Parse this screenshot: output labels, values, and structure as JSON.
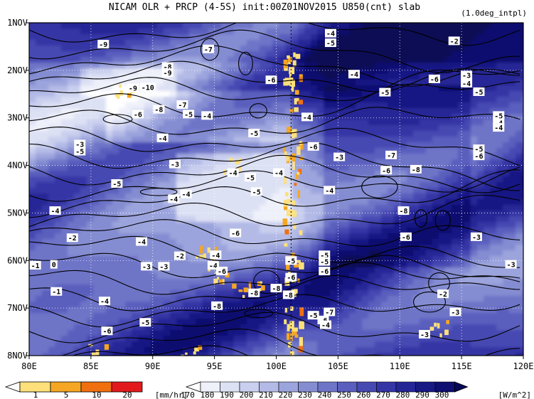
{
  "chart_data": {
    "type": "heatmap",
    "title": "NICAM  OLR + PRCP (4-5S) init:00Z01NOV2015 U850(cnt) slab",
    "subtitle": "(1.0deg_intpl)",
    "x_axis": {
      "range": [
        80,
        120
      ],
      "tick_values": [
        80,
        85,
        90,
        95,
        100,
        105,
        110,
        115,
        120
      ],
      "tick_labels": [
        "80E",
        "85E",
        "90E",
        "95E",
        "100E",
        "105E",
        "110E",
        "115E",
        "120E"
      ]
    },
    "y_axis": {
      "range_days": [
        1,
        8
      ],
      "reversed": true,
      "tick_values": [
        1,
        2,
        3,
        4,
        5,
        6,
        7,
        8
      ],
      "tick_labels": [
        "1NOV",
        "2NOV",
        "3NOV",
        "4NOV",
        "5NOV",
        "6NOV",
        "7NOV",
        "8NOV"
      ]
    },
    "grid": "dotted",
    "precip_colorbar": {
      "unit": "[mm/hr]",
      "levels": [
        1,
        5,
        10,
        20
      ],
      "colors": [
        "#ffffff",
        "#fde07a",
        "#f5a623",
        "#f07010",
        "#e31a1c"
      ]
    },
    "olr_colorbar": {
      "unit": "[W/m^2]",
      "levels": [
        170,
        180,
        190,
        200,
        210,
        220,
        230,
        240,
        250,
        260,
        270,
        280,
        290,
        300
      ],
      "colors": [
        "#ffffff",
        "#eef0fa",
        "#dde1f4",
        "#c9cfee",
        "#b3bae6",
        "#9ca4dd",
        "#858dd2",
        "#6e75c7",
        "#5a5fbd",
        "#4749b2",
        "#3535a5",
        "#252696",
        "#171984",
        "#0e0f70",
        "#070855"
      ]
    },
    "precip_contour_x": 101.2,
    "contour_labels": [
      {
        "x": 86,
        "y": 1.45,
        "text": "-9"
      },
      {
        "x": 94.5,
        "y": 1.55,
        "text": "-7"
      },
      {
        "x": 91.2,
        "y": 1.92,
        "text": "-8"
      },
      {
        "x": 91.2,
        "y": 2.05,
        "text": "-9"
      },
      {
        "x": 89.6,
        "y": 2.35,
        "text": "-10"
      },
      {
        "x": 88.4,
        "y": 2.37,
        "text": "-9"
      },
      {
        "x": 99.6,
        "y": 2.2,
        "text": "-6"
      },
      {
        "x": 104.4,
        "y": 1.22,
        "text": "-4"
      },
      {
        "x": 104.4,
        "y": 1.42,
        "text": "-5"
      },
      {
        "x": 114.4,
        "y": 1.38,
        "text": "-2"
      },
      {
        "x": 106.3,
        "y": 2.08,
        "text": "-4"
      },
      {
        "x": 108.8,
        "y": 2.46,
        "text": "-5"
      },
      {
        "x": 112.8,
        "y": 2.18,
        "text": "-6"
      },
      {
        "x": 115.4,
        "y": 2.1,
        "text": "-3"
      },
      {
        "x": 115.4,
        "y": 2.27,
        "text": "-4"
      },
      {
        "x": 116.4,
        "y": 2.45,
        "text": "-5"
      },
      {
        "x": 92.4,
        "y": 2.72,
        "text": "-7"
      },
      {
        "x": 90.5,
        "y": 2.82,
        "text": "-8"
      },
      {
        "x": 88.8,
        "y": 2.92,
        "text": "-6"
      },
      {
        "x": 92.9,
        "y": 2.92,
        "text": "-5"
      },
      {
        "x": 94.4,
        "y": 2.95,
        "text": "-4"
      },
      {
        "x": 98.2,
        "y": 3.32,
        "text": "-5"
      },
      {
        "x": 102.5,
        "y": 2.98,
        "text": "-4"
      },
      {
        "x": 118.0,
        "y": 2.95,
        "text": "-5"
      },
      {
        "x": 118.0,
        "y": 3.1,
        "text": "-4"
      },
      {
        "x": 118.0,
        "y": 3.2,
        "text": "-4"
      },
      {
        "x": 90.8,
        "y": 3.42,
        "text": "-4"
      },
      {
        "x": 84.1,
        "y": 3.55,
        "text": "-3"
      },
      {
        "x": 84.1,
        "y": 3.7,
        "text": "-5"
      },
      {
        "x": 103.0,
        "y": 3.6,
        "text": "-6"
      },
      {
        "x": 105.1,
        "y": 3.82,
        "text": "-3"
      },
      {
        "x": 109.3,
        "y": 3.78,
        "text": "-7"
      },
      {
        "x": 116.4,
        "y": 3.65,
        "text": "-5"
      },
      {
        "x": 116.4,
        "y": 3.8,
        "text": "-6"
      },
      {
        "x": 91.8,
        "y": 3.97,
        "text": "-3"
      },
      {
        "x": 96.5,
        "y": 4.15,
        "text": "-4"
      },
      {
        "x": 97.9,
        "y": 4.25,
        "text": "-5"
      },
      {
        "x": 100.2,
        "y": 4.15,
        "text": "-4"
      },
      {
        "x": 108.9,
        "y": 4.1,
        "text": "-6"
      },
      {
        "x": 111.3,
        "y": 4.08,
        "text": "-8"
      },
      {
        "x": 87.1,
        "y": 4.38,
        "text": "-5"
      },
      {
        "x": 98.4,
        "y": 4.55,
        "text": "-5"
      },
      {
        "x": 104.3,
        "y": 4.52,
        "text": "-4"
      },
      {
        "x": 91.7,
        "y": 4.7,
        "text": "-4"
      },
      {
        "x": 92.7,
        "y": 4.6,
        "text": "-4"
      },
      {
        "x": 82.1,
        "y": 4.95,
        "text": "-4"
      },
      {
        "x": 110.3,
        "y": 4.95,
        "text": "-8"
      },
      {
        "x": 96.7,
        "y": 5.42,
        "text": "-6"
      },
      {
        "x": 89.1,
        "y": 5.6,
        "text": "-4"
      },
      {
        "x": 83.5,
        "y": 5.52,
        "text": "-2"
      },
      {
        "x": 110.5,
        "y": 5.5,
        "text": "-6"
      },
      {
        "x": 116.2,
        "y": 5.5,
        "text": "-3"
      },
      {
        "x": 92.2,
        "y": 5.9,
        "text": "-2"
      },
      {
        "x": 101.2,
        "y": 6.0,
        "text": "-5"
      },
      {
        "x": 103.9,
        "y": 5.88,
        "text": "-5"
      },
      {
        "x": 103.9,
        "y": 6.02,
        "text": "-5"
      },
      {
        "x": 95.1,
        "y": 5.88,
        "text": "-4"
      },
      {
        "x": 80.5,
        "y": 6.1,
        "text": "-1"
      },
      {
        "x": 82.0,
        "y": 6.08,
        "text": "0"
      },
      {
        "x": 89.5,
        "y": 6.12,
        "text": "-3"
      },
      {
        "x": 90.9,
        "y": 6.12,
        "text": "-3"
      },
      {
        "x": 94.9,
        "y": 6.1,
        "text": "-4"
      },
      {
        "x": 95.6,
        "y": 6.22,
        "text": "-6"
      },
      {
        "x": 103.9,
        "y": 6.22,
        "text": "-6"
      },
      {
        "x": 101.2,
        "y": 6.35,
        "text": "-6"
      },
      {
        "x": 119.0,
        "y": 6.08,
        "text": "-3"
      },
      {
        "x": 82.2,
        "y": 6.65,
        "text": "-1"
      },
      {
        "x": 100.0,
        "y": 6.58,
        "text": "-8"
      },
      {
        "x": 98.2,
        "y": 6.68,
        "text": "-8"
      },
      {
        "x": 101.0,
        "y": 6.72,
        "text": "-8"
      },
      {
        "x": 113.5,
        "y": 6.7,
        "text": "-2"
      },
      {
        "x": 86.1,
        "y": 6.85,
        "text": "-4"
      },
      {
        "x": 95.2,
        "y": 6.95,
        "text": "-8"
      },
      {
        "x": 104.3,
        "y": 7.08,
        "text": "-7"
      },
      {
        "x": 103.0,
        "y": 7.15,
        "text": "-5"
      },
      {
        "x": 103.8,
        "y": 7.25,
        "text": "-6"
      },
      {
        "x": 114.5,
        "y": 7.08,
        "text": "-3"
      },
      {
        "x": 89.4,
        "y": 7.3,
        "text": "-5"
      },
      {
        "x": 104.0,
        "y": 7.35,
        "text": "-4"
      },
      {
        "x": 86.3,
        "y": 7.48,
        "text": "-6"
      },
      {
        "x": 112.0,
        "y": 7.55,
        "text": "-3"
      }
    ]
  }
}
